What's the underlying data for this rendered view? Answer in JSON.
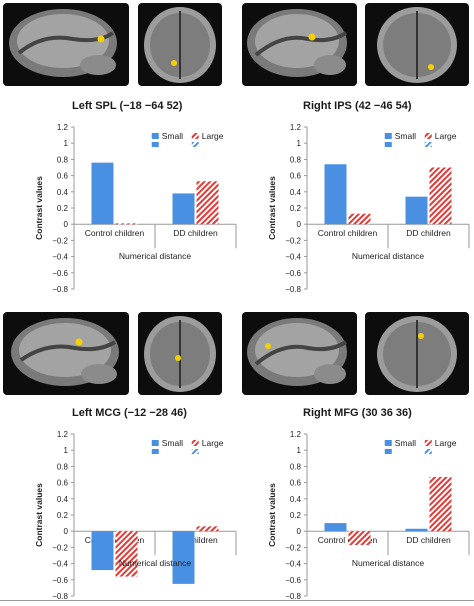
{
  "panels": [
    {
      "title": "Left SPL (−18 −64 52)",
      "chart_data": {
        "type": "bar",
        "title": "Left SPL (−18 −64 52)",
        "categories": [
          "Control children",
          "DD children"
        ],
        "xlabel": "Numerical distance",
        "ylabel": "Contrast values",
        "ylim": [
          -0.8,
          1.2
        ],
        "yticks": [
          "1.2",
          "1",
          "0.8",
          "0.6",
          "0.4",
          "0.2",
          "0",
          "−0.2",
          "−0.4",
          "−0.6",
          "−0.8"
        ],
        "series": [
          {
            "name": "Small",
            "values": [
              0.76,
              0.38
            ],
            "color": "#4a90e2",
            "pattern": "solid"
          },
          {
            "name": "Large",
            "values": [
              0.01,
              0.53
            ],
            "color": "#e53935",
            "pattern": "hatched"
          }
        ],
        "legend": "top-right",
        "grid": false
      }
    },
    {
      "title": "Right IPS (42 −46 54)",
      "chart_data": {
        "type": "bar",
        "title": "Right IPS (42 −46 54)",
        "categories": [
          "Control children",
          "DD children"
        ],
        "xlabel": "Numerical distance",
        "ylabel": "Contrast values",
        "ylim": [
          -0.8,
          1.2
        ],
        "yticks": [
          "1.2",
          "1",
          "0.8",
          "0.6",
          "0.4",
          "0.2",
          "0",
          "−0.2",
          "−0.4",
          "−0.6",
          "−0.8"
        ],
        "series": [
          {
            "name": "Small",
            "values": [
              0.74,
              0.34
            ],
            "color": "#4a90e2",
            "pattern": "solid"
          },
          {
            "name": "Large",
            "values": [
              0.13,
              0.7
            ],
            "color": "#e53935",
            "pattern": "hatched"
          }
        ],
        "legend": "top-right",
        "grid": false
      }
    },
    {
      "title": "Left MCG (−12 −28 46)",
      "chart_data": {
        "type": "bar",
        "title": "Left MCG (−12 −28 46)",
        "categories": [
          "Control children",
          "DD children"
        ],
        "xlabel": "Numerical distance",
        "ylabel": "Contrast values",
        "ylim": [
          -0.8,
          1.2
        ],
        "yticks": [
          "1.2",
          "1",
          "0.8",
          "0.6",
          "0.4",
          "0.2",
          "0",
          "−0.2",
          "−0.4",
          "−0.6",
          "−0.8"
        ],
        "series": [
          {
            "name": "Small",
            "values": [
              -0.48,
              -0.65
            ],
            "color": "#4a90e2",
            "pattern": "solid"
          },
          {
            "name": "Large",
            "values": [
              -0.56,
              0.06
            ],
            "color": "#e53935",
            "pattern": "hatched"
          }
        ],
        "legend": "top-right",
        "grid": false
      }
    },
    {
      "title": "Right MFG (30 36 36)",
      "chart_data": {
        "type": "bar",
        "title": "Right MFG (30 36 36)",
        "categories": [
          "Control children",
          "DD children"
        ],
        "xlabel": "Numerical distance",
        "ylabel": "Contrast values",
        "ylim": [
          -0.8,
          1.2
        ],
        "yticks": [
          "1.2",
          "1",
          "0.8",
          "0.6",
          "0.4",
          "0.2",
          "0",
          "−0.2",
          "−0.4",
          "−0.6",
          "−0.8"
        ],
        "series": [
          {
            "name": "Small",
            "values": [
              0.1,
              0.03
            ],
            "color": "#4a90e2",
            "pattern": "solid"
          },
          {
            "name": "Large",
            "values": [
              -0.17,
              0.67
            ],
            "color": "#e53935",
            "pattern": "hatched"
          }
        ],
        "legend": "top-right",
        "grid": false
      }
    }
  ],
  "colors": {
    "small": "#4a90e2",
    "large": "#e53935",
    "brain_bg": "#0d0d0d",
    "blob": "#f5d000"
  }
}
